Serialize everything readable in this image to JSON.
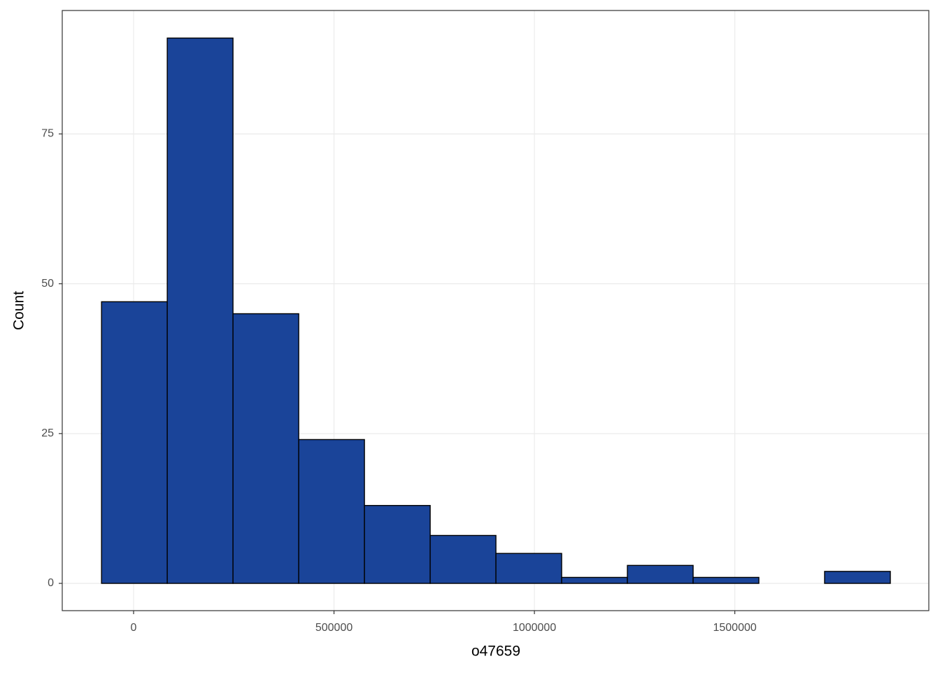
{
  "chart_data": {
    "type": "histogram",
    "x_label": "o47659",
    "y_label": "Count",
    "bins": [
      -80000,
      84000,
      248000,
      412000,
      576000,
      740000,
      904000,
      1068000,
      1232000,
      1396000,
      1560000,
      1724000,
      1888000
    ],
    "values": [
      47,
      91,
      45,
      24,
      13,
      8,
      5,
      1,
      3,
      1,
      0,
      2
    ],
    "color": "#1a4499",
    "edge_color": "#000000",
    "xlim": [
      -178000,
      1984000
    ],
    "xticks": [
      0,
      500000,
      1000000,
      1500000
    ],
    "ylim": [
      -4.55,
      95.6
    ],
    "yticks": [
      0,
      25,
      50,
      75
    ],
    "grid": true
  }
}
